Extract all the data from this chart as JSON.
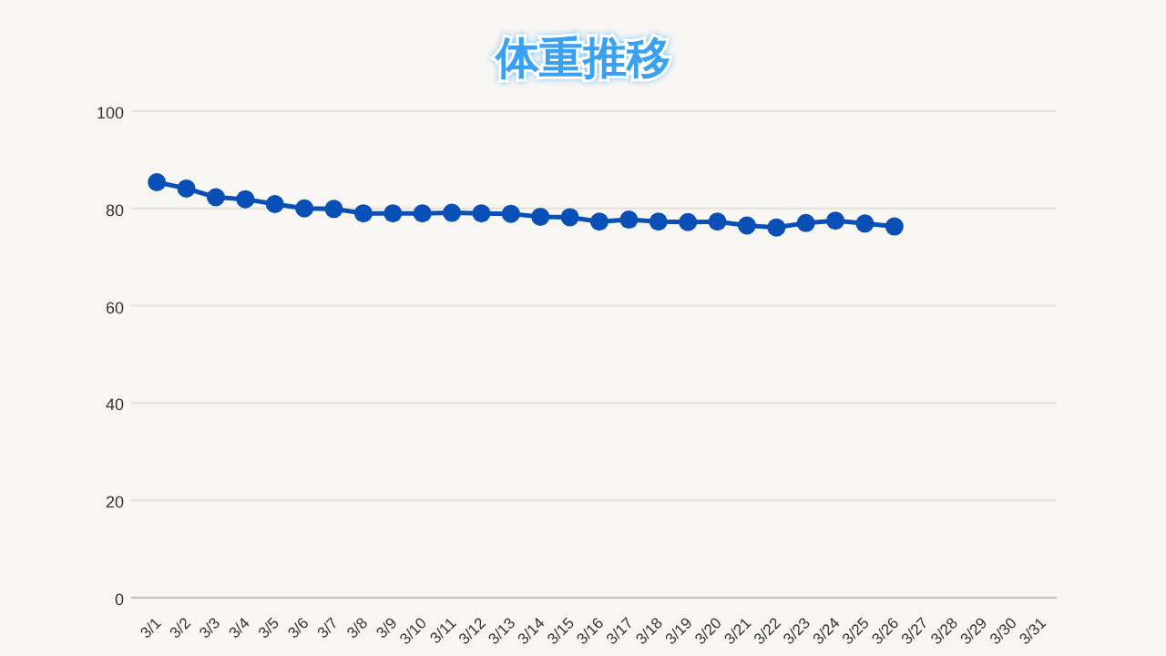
{
  "chart_data": {
    "type": "line",
    "title": "体重推移",
    "categories": [
      "3/1",
      "3/2",
      "3/3",
      "3/4",
      "3/5",
      "3/6",
      "3/7",
      "3/8",
      "3/9",
      "3/10",
      "3/11",
      "3/12",
      "3/13",
      "3/14",
      "3/15",
      "3/16",
      "3/17",
      "3/18",
      "3/19",
      "3/20",
      "3/21",
      "3/22",
      "3/23",
      "3/24",
      "3/25",
      "3/26",
      "3/27",
      "3/28",
      "3/29",
      "3/30",
      "3/31"
    ],
    "series": [
      {
        "color": "#0a4fb5",
        "values": [
          85.4,
          84.1,
          82.3,
          81.9,
          80.9,
          80.0,
          79.9,
          79.0,
          79.0,
          79.0,
          79.1,
          79.0,
          78.9,
          78.3,
          78.2,
          77.3,
          77.7,
          77.3,
          77.2,
          77.3,
          76.5,
          76.1,
          77.0,
          77.5,
          76.9,
          76.3,
          null,
          null,
          null,
          null,
          null
        ]
      }
    ],
    "ylim": [
      0,
      100
    ],
    "yticks": [
      0,
      20,
      40,
      60,
      80,
      100
    ],
    "grid": "y",
    "marker": "circle",
    "line_style": "solid"
  }
}
